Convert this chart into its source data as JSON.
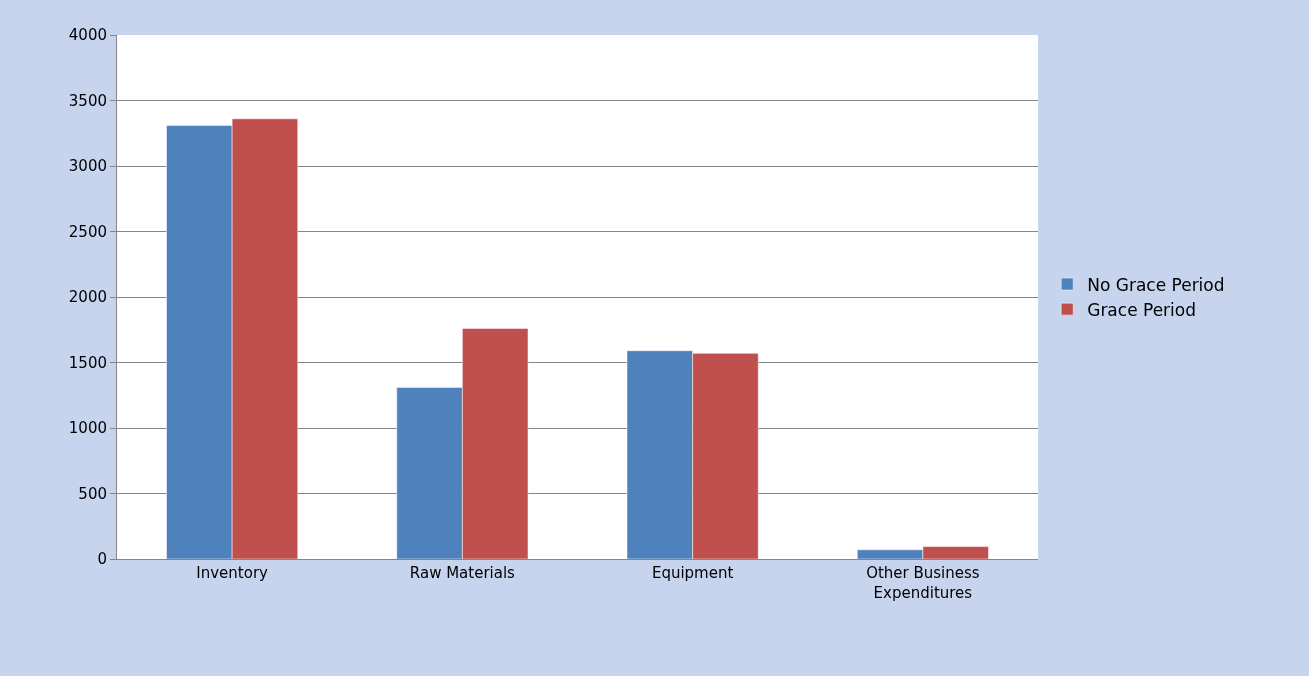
{
  "chart_data": {
    "type": "bar",
    "categories": [
      "Inventory",
      "Raw Materials",
      "Equipment",
      "Other Business Expenditures"
    ],
    "series": [
      {
        "name": "No Grace Period",
        "color": "#4f81bd",
        "values": [
          3310,
          1310,
          1590,
          70
        ]
      },
      {
        "name": "Grace Period",
        "color": "#c0504d",
        "values": [
          3360,
          1760,
          1570,
          95
        ]
      }
    ],
    "ylim": [
      0,
      4000
    ],
    "yticks": [
      0,
      500,
      1000,
      1500,
      2000,
      2500,
      3000,
      3500,
      4000
    ],
    "grid": "y",
    "legend": "right"
  }
}
